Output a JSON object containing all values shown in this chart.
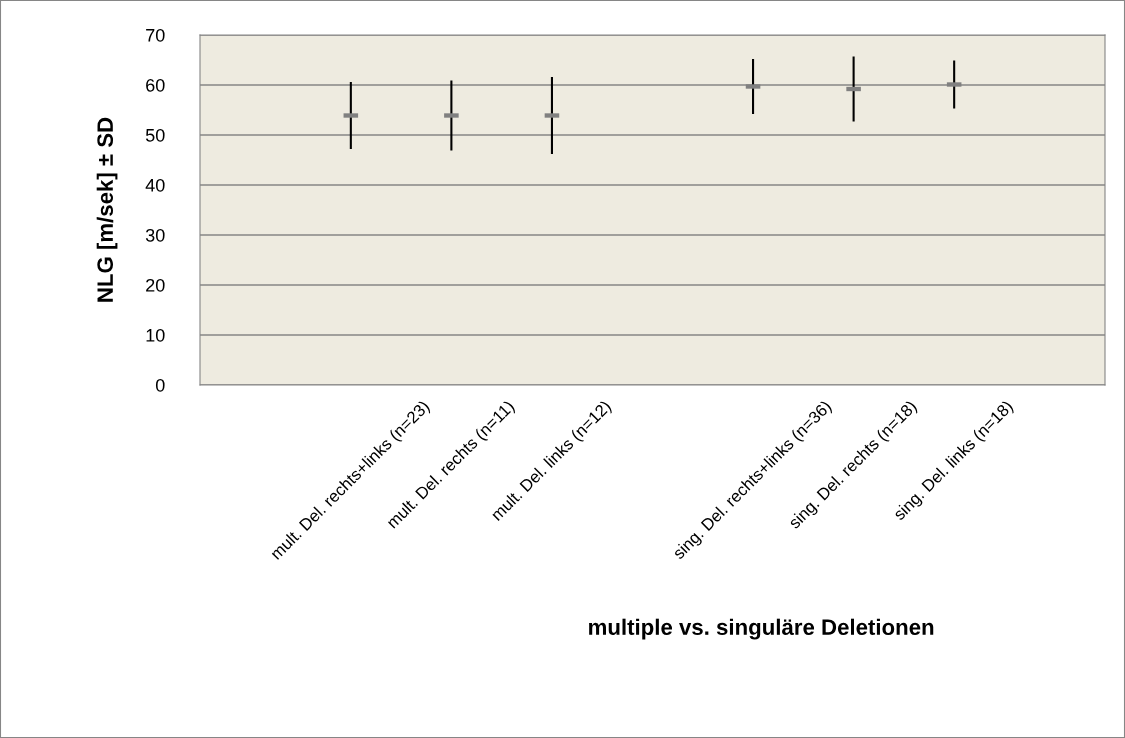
{
  "chart_data": {
    "type": "scatter",
    "xlabel": "multiple vs. singuläre Deletionen",
    "ylabel": "NLG [m/sek] ± SD",
    "categories": [
      null,
      "mult. Del. rechts+links (n=23)",
      "mult. Del. rechts (n=11)",
      "mult. Del. links (n=12)",
      null,
      "sing. Del. rechts+links (n=36)",
      "sing. Del. rechts (n=18)",
      "sing. Del. links (n=18)",
      null
    ],
    "values": [
      null,
      53.9,
      53.9,
      53.9,
      null,
      59.7,
      59.2,
      60.1,
      null
    ],
    "errors": [
      null,
      6.7,
      7,
      7.7,
      null,
      5.5,
      6.5,
      4.8,
      null
    ],
    "color": "#808080",
    "ylim": [
      0,
      70
    ],
    "yticks": [
      0,
      10,
      20,
      30,
      40,
      50,
      60,
      70
    ],
    "grid": "y",
    "legend": false
  }
}
